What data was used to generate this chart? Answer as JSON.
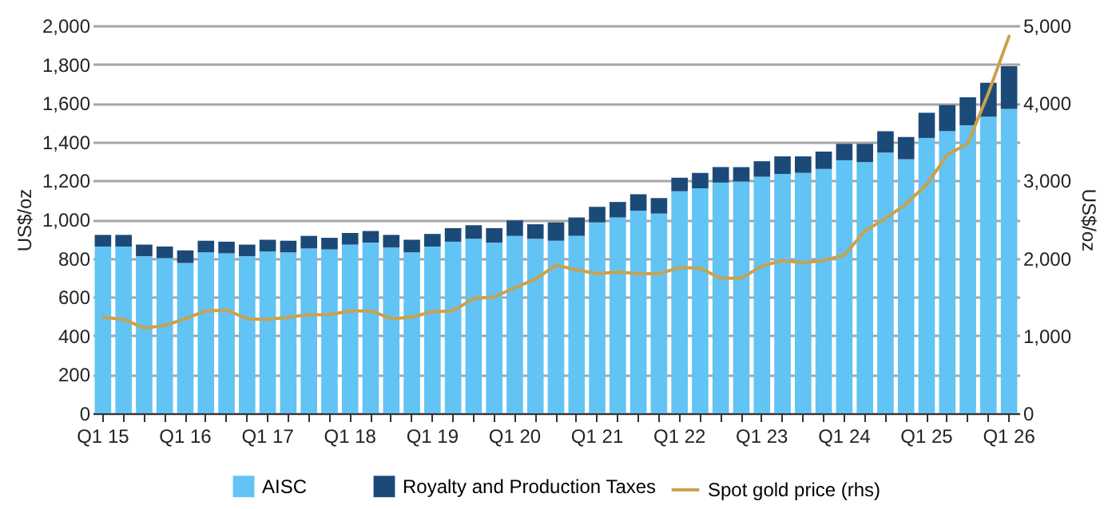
{
  "chart_data": {
    "type": "bar",
    "ylabel": "US$/oz",
    "y2label": "US$/oz",
    "stacked": true,
    "grid": "y",
    "legend": "bottom",
    "categories": [
      "Q1 15",
      null,
      null,
      null,
      "Q1 16",
      null,
      null,
      null,
      "Q1 17",
      null,
      null,
      null,
      "Q1 18",
      null,
      null,
      null,
      "Q1 19",
      null,
      null,
      null,
      "Q1 20",
      null,
      null,
      null,
      "Q1 21",
      null,
      null,
      null,
      "Q1 22",
      null,
      null,
      null,
      "Q1 23",
      null,
      null,
      null,
      "Q1 24",
      null,
      null,
      null,
      "Q1 25",
      null,
      null,
      null,
      "Q1 26"
    ],
    "series": [
      {
        "name": "AISC",
        "color": "#62c3f5",
        "values": [
          860,
          860,
          810,
          800,
          775,
          830,
          825,
          810,
          835,
          830,
          850,
          845,
          870,
          880,
          855,
          830,
          860,
          885,
          900,
          880,
          915,
          900,
          890,
          915,
          985,
          1010,
          1045,
          1030,
          1145,
          1160,
          1190,
          1195,
          1220,
          1235,
          1240,
          1260,
          1305,
          1295,
          1345,
          1310,
          1420,
          1455,
          1485,
          1530,
          1570
        ]
      },
      {
        "name": "Royalty and Production Taxes",
        "color": "#1c4a78",
        "values": [
          60,
          60,
          60,
          60,
          65,
          60,
          60,
          60,
          60,
          60,
          65,
          60,
          60,
          60,
          65,
          65,
          65,
          70,
          70,
          75,
          80,
          75,
          95,
          95,
          80,
          80,
          85,
          80,
          70,
          80,
          80,
          75,
          80,
          90,
          85,
          90,
          85,
          95,
          110,
          115,
          130,
          135,
          145,
          175,
          220
        ]
      },
      {
        "name": "Spot gold price (rhs)",
        "type": "line",
        "axis": "y2",
        "color": "#c9a24f",
        "values": [
          1240,
          1210,
          1100,
          1130,
          1220,
          1320,
          1330,
          1220,
          1210,
          1240,
          1270,
          1270,
          1320,
          1320,
          1220,
          1240,
          1310,
          1320,
          1480,
          1500,
          1620,
          1730,
          1910,
          1850,
          1800,
          1820,
          1800,
          1800,
          1880,
          1870,
          1740,
          1740,
          1900,
          1970,
          1940,
          1970,
          2040,
          2350,
          2510,
          2700,
          2950,
          3330,
          3480,
          4130,
          4860
        ]
      }
    ],
    "ylim": [
      0,
      2000
    ],
    "yticks": [
      0,
      {
        "value": 200,
        "label": "200"
      },
      {
        "value": 400,
        "label": "400"
      },
      {
        "value": 600,
        "label": "600"
      },
      {
        "value": 800,
        "label": "800"
      },
      {
        "value": 1000,
        "label": "1,000"
      },
      {
        "value": 1200,
        "label": "1,200"
      },
      {
        "value": 1400,
        "label": "1,400"
      },
      {
        "value": 1600,
        "label": "1,600"
      },
      {
        "value": 1800,
        "label": "1,800"
      },
      {
        "value": 2000,
        "label": "2,000"
      }
    ],
    "y2lim": [
      0,
      5000
    ],
    "y2ticks": [
      0,
      {
        "value": 1000,
        "label": "1,000"
      },
      {
        "value": 2000,
        "label": "2,000"
      },
      {
        "value": 3000,
        "label": "3,000"
      },
      {
        "value": 4000,
        "label": "4,000"
      },
      {
        "value": 5000,
        "label": "5,000"
      }
    ]
  }
}
